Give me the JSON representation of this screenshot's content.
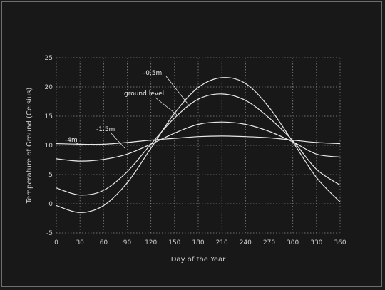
{
  "chart_data": {
    "type": "line",
    "title": "",
    "xlabel": "Day of the Year",
    "ylabel": "Temperature of Ground  (Celsius)",
    "xlim": [
      0,
      360
    ],
    "ylim": [
      -5,
      25
    ],
    "xticks": [
      0,
      30,
      60,
      90,
      120,
      150,
      180,
      210,
      240,
      270,
      300,
      330,
      360
    ],
    "yticks": [
      -5,
      0,
      5,
      10,
      15,
      20,
      25
    ],
    "grid": true,
    "legend": "none",
    "colors": {
      "background": "#181818",
      "lines": "#e8e8e8",
      "grid": "#8a8a8a",
      "text": "#cfcfcf"
    },
    "x": [
      0,
      30,
      60,
      90,
      120,
      150,
      180,
      210,
      240,
      270,
      300,
      330,
      360
    ],
    "series": [
      {
        "name": "-0.5m",
        "values": [
          -0.3,
          -1.5,
          -0.3,
          3.6,
          9.5,
          15.5,
          19.9,
          21.6,
          20.6,
          16.5,
          10.6,
          4.5,
          0.3
        ]
      },
      {
        "name": "ground level",
        "values": [
          2.7,
          1.5,
          2.3,
          5.5,
          10.2,
          14.7,
          17.9,
          18.8,
          17.7,
          14.7,
          10.8,
          5.9,
          3.2
        ]
      },
      {
        "name": "-1.5m",
        "values": [
          7.7,
          7.3,
          7.6,
          8.5,
          10.2,
          12.1,
          13.6,
          14.0,
          13.6,
          12.4,
          10.6,
          8.5,
          8.0
        ]
      },
      {
        "name": "-4m",
        "values": [
          10.3,
          10.2,
          10.2,
          10.5,
          10.9,
          11.2,
          11.5,
          11.6,
          11.5,
          11.3,
          10.9,
          10.5,
          10.3
        ]
      }
    ],
    "annotations": [
      "-0.5m",
      "ground level",
      "-1.5m",
      "-4m"
    ]
  }
}
